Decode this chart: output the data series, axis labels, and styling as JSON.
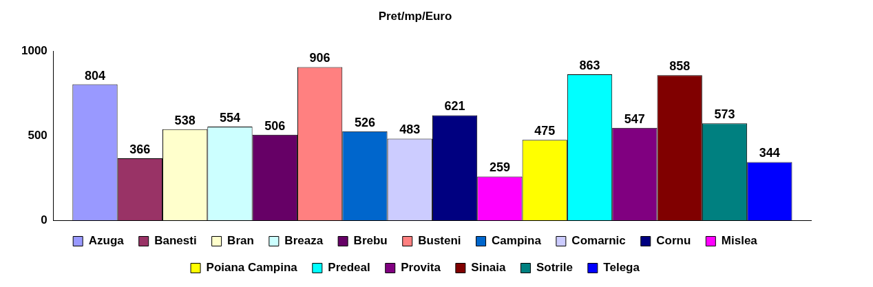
{
  "chart_data": {
    "type": "bar",
    "title": "Pret/mp/Euro",
    "categories": [
      null
    ],
    "series": [
      {
        "name": "Azuga",
        "color": "#9999ff",
        "values": [
          804
        ]
      },
      {
        "name": "Banesti",
        "color": "#993366",
        "values": [
          366
        ]
      },
      {
        "name": "Bran",
        "color": "#ffffcc",
        "values": [
          538
        ]
      },
      {
        "name": "Breaza",
        "color": "#ccffff",
        "values": [
          554
        ]
      },
      {
        "name": "Brebu",
        "color": "#660066",
        "values": [
          506
        ]
      },
      {
        "name": "Busteni",
        "color": "#ff8080",
        "values": [
          906
        ]
      },
      {
        "name": "Campina",
        "color": "#0066cc",
        "values": [
          526
        ]
      },
      {
        "name": "Comarnic",
        "color": "#ccccff",
        "values": [
          483
        ]
      },
      {
        "name": "Cornu",
        "color": "#000080",
        "values": [
          621
        ]
      },
      {
        "name": "Mislea",
        "color": "#ff00ff",
        "values": [
          259
        ]
      },
      {
        "name": "Poiana Campina",
        "color": "#ffff00",
        "values": [
          475
        ]
      },
      {
        "name": "Predeal",
        "color": "#00ffff",
        "values": [
          863
        ]
      },
      {
        "name": "Provita",
        "color": "#800080",
        "values": [
          547
        ]
      },
      {
        "name": "Sinaia",
        "color": "#800000",
        "values": [
          858
        ]
      },
      {
        "name": "Sotrile",
        "color": "#008080",
        "values": [
          573
        ]
      },
      {
        "name": "Telega",
        "color": "#0000ff",
        "values": [
          344
        ]
      }
    ],
    "ylim": [
      0,
      1000
    ],
    "yticks": [
      0,
      500,
      1000
    ],
    "grid": false,
    "legend": "bottom",
    "data_labels": true
  }
}
